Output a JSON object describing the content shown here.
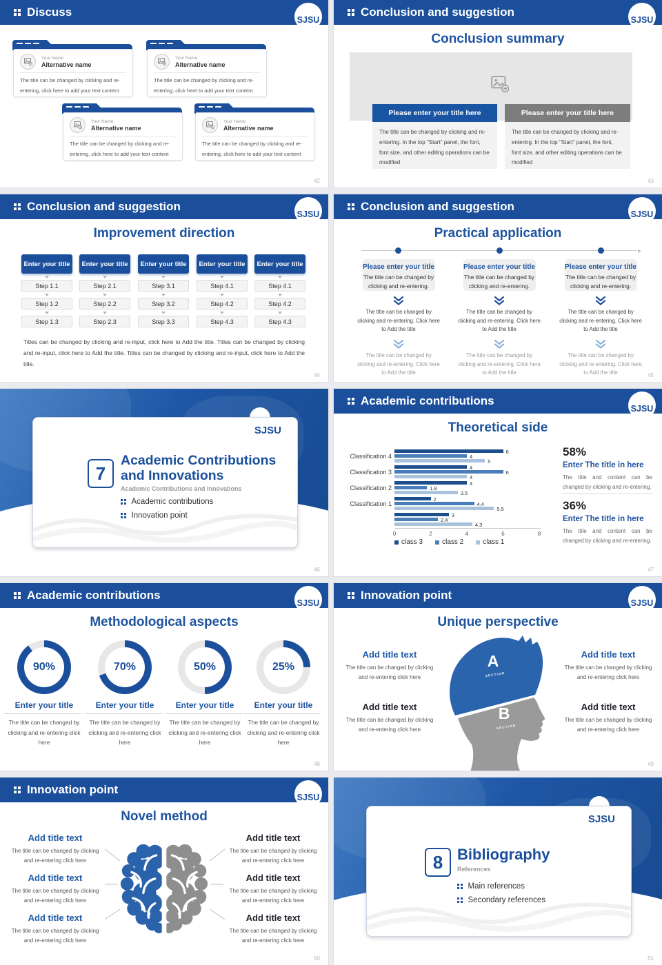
{
  "s42": {
    "header": "Discuss",
    "logo": "SJSU",
    "page": "42",
    "card": {
      "name_label": "Your Name",
      "name": "Alternative name",
      "body": "The title can be changed by clicking and re-entering, click here to add your text content"
    }
  },
  "s43": {
    "header": "Conclusion and suggestion",
    "logo": "SJSU",
    "page": "43",
    "title": "Conclusion summary",
    "bar_blue": "Please enter your title here",
    "bar_gray": "Please enter your title here",
    "body": "The title can be changed by clicking and re-entering. In the top \"Start\" panel, the font, font size, and other editing operations can be modified"
  },
  "s44": {
    "header": "Conclusion and suggestion",
    "logo": "SJSU",
    "page": "44",
    "title": "Improvement direction",
    "col_header": "Enter your title",
    "columns": [
      {
        "steps": [
          "Step 1.1",
          "Step 1.2",
          "Step 1.3"
        ]
      },
      {
        "steps": [
          "Step 2.1",
          "Step 2.2",
          "Step 2.3"
        ]
      },
      {
        "steps": [
          "Step 3.1",
          "Step 3.2",
          "Step 3.3"
        ]
      },
      {
        "steps": [
          "Step 4.1",
          "Step 4.2",
          "Step 4.3"
        ]
      },
      {
        "steps": [
          "Step 4.1",
          "Step 4.2",
          "Step 4.3"
        ]
      }
    ],
    "footer": "Titles can be changed by clicking and re-input, click here to Add the title. Titles can be changed by clicking and re-input, click here to Add the title. Titles can be changed by clicking and re-input, click here to Add the title."
  },
  "s45": {
    "header": "Conclusion and suggestion",
    "logo": "SJSU",
    "page": "45",
    "title": "Practical application",
    "card_title": "Please enter your title",
    "card_body": "The title can be changed by clicking and re-entering.",
    "step_text": "The title can be changed by clicking and re-entering. Click here to Add the title"
  },
  "s46": {
    "logo": "SJSU",
    "page": "46",
    "number": "7",
    "title": "Academic Contributions and Innovations",
    "subtitle": "Academic Contributions and Innovations",
    "bullets": [
      "Academic contributions",
      "Innovation point"
    ]
  },
  "s47": {
    "header": "Academic contributions",
    "logo": "SJSU",
    "page": "47",
    "title": "Theoretical side",
    "chart_data": {
      "type": "bar",
      "orientation": "horizontal",
      "xlim": [
        0,
        8
      ],
      "x_ticks": [
        0,
        2,
        4,
        6,
        8
      ],
      "rows": [
        {
          "label": "Classification 4",
          "values": [
            6,
            4,
            5
          ]
        },
        {
          "label": "Classification 3",
          "values": [
            4,
            6,
            4
          ]
        },
        {
          "label": "Classification 2",
          "values": [
            4,
            1.8,
            3.5
          ]
        },
        {
          "label": "Classification 1",
          "values": [
            2,
            4.4,
            5.5
          ]
        },
        {
          "label": "",
          "values": [
            3,
            2.4,
            4.3
          ]
        }
      ],
      "series": [
        {
          "name": "class 3",
          "color": "#1f4e8c"
        },
        {
          "name": "class 2",
          "color": "#4a7ebb"
        },
        {
          "name": "class 1",
          "color": "#a9c3dd"
        }
      ]
    },
    "stats": [
      {
        "pct": "58%",
        "title": "Enter The title in here",
        "body": "The title and content can be changed by clicking and re-entering."
      },
      {
        "pct": "36%",
        "title": "Enter The title in here",
        "body": "The title and content can be changed by clicking and re-entering."
      }
    ]
  },
  "s48": {
    "header": "Academic contributions",
    "logo": "SJSU",
    "page": "48",
    "title": "Methodological aspects",
    "ring_color": "#1b4f9c",
    "track_color": "#e7e7e7",
    "items": [
      {
        "value": 90,
        "pct": "90%",
        "title": "Enter your title",
        "body": "The title can be changed by clicking and re-entering click here"
      },
      {
        "value": 70,
        "pct": "70%",
        "title": "Enter your title",
        "body": "The title can be changed by clicking and re-entering click here"
      },
      {
        "value": 50,
        "pct": "50%",
        "title": "Enter your title",
        "body": "The title can be changed by clicking and re-entering click here"
      },
      {
        "value": 25,
        "pct": "25%",
        "title": "Enter your title",
        "body": "The title can be changed by clicking and re-entering click here"
      }
    ]
  },
  "s49": {
    "header": "Innovation point",
    "logo": "SJSU",
    "page": "49",
    "title": "Unique perspective",
    "item_title": "Add title text",
    "item_body": "The title can be changed by clicking and re-entering click here",
    "section_a": "A",
    "section_b": "B",
    "section_label": "SECTION"
  },
  "s50": {
    "header": "Innovation point",
    "logo": "SJSU",
    "page": "50",
    "title": "Novel method",
    "item_title": "Add title text",
    "item_body": "The title can be changed by clicking and re-entering click here"
  },
  "s51": {
    "logo": "SJSU",
    "page": "51",
    "number": "8",
    "title": "Bibliography",
    "subtitle": "References",
    "bullets": [
      "Main references",
      "Secondary references"
    ]
  }
}
